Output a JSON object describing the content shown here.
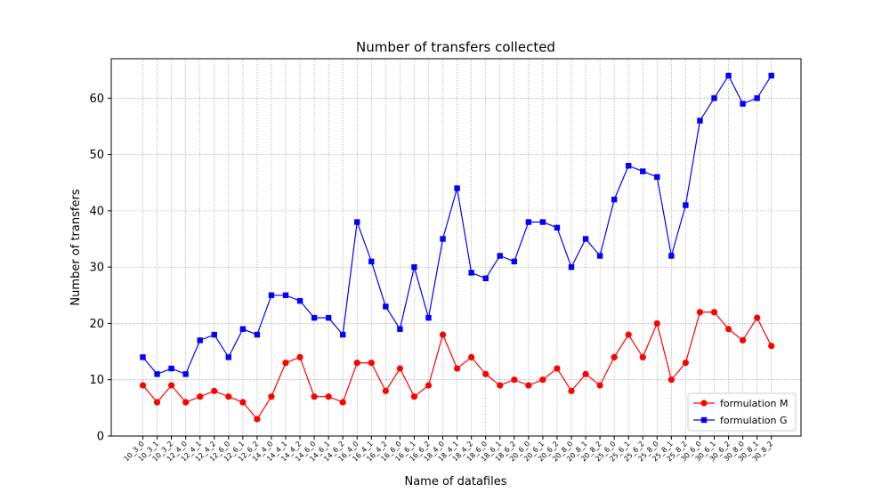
{
  "chart_data": {
    "type": "line",
    "title": "Number of transfers collected",
    "xlabel": "Name of datafiles",
    "ylabel": "Number of transfers",
    "ylim": [
      0,
      67
    ],
    "yticks": [
      0,
      10,
      20,
      30,
      40,
      50,
      60
    ],
    "grid": true,
    "legend_position": "lower-right",
    "categories": [
      "10_3_0",
      "10_3_1",
      "10_3_2",
      "12_4_0",
      "12_4_1",
      "12_4_2",
      "12_6_0",
      "12_6_1",
      "12_6_2",
      "14_4_0",
      "14_4_1",
      "14_4_2",
      "14_6_0",
      "14_6_1",
      "14_6_2",
      "16_4_0",
      "16_4_1",
      "16_4_2",
      "16_6_0",
      "16_6_1",
      "16_6_2",
      "18_4_0",
      "18_4_1",
      "18_4_2",
      "18_6_0",
      "18_6_1",
      "18_6_2",
      "20_6_0",
      "20_6_1",
      "20_6_2",
      "20_8_0",
      "20_8_1",
      "20_8_2",
      "25_6_0",
      "25_6_1",
      "25_6_2",
      "25_8_0",
      "25_8_1",
      "25_8_2",
      "30_6_0",
      "30_6_1",
      "30_6_2",
      "30_8_0",
      "30_8_1",
      "30_8_2"
    ],
    "series": [
      {
        "name": "formulation M",
        "color": "#ff0000",
        "marker": "circle",
        "values": [
          9,
          6,
          9,
          6,
          7,
          8,
          7,
          6,
          3,
          7,
          13,
          14,
          7,
          7,
          6,
          13,
          13,
          8,
          12,
          7,
          9,
          18,
          12,
          14,
          11,
          9,
          10,
          9,
          10,
          12,
          8,
          11,
          9,
          14,
          18,
          14,
          20,
          10,
          13,
          22,
          22,
          19,
          17,
          21,
          16
        ]
      },
      {
        "name": "formulation G",
        "color": "#0000ff",
        "marker": "square",
        "values": [
          14,
          11,
          12,
          11,
          17,
          18,
          14,
          19,
          18,
          25,
          25,
          24,
          21,
          21,
          18,
          38,
          31,
          23,
          19,
          30,
          21,
          35,
          44,
          29,
          28,
          32,
          31,
          38,
          38,
          37,
          30,
          35,
          32,
          42,
          48,
          47,
          46,
          32,
          41,
          56,
          60,
          64,
          59,
          60,
          64
        ]
      }
    ]
  }
}
